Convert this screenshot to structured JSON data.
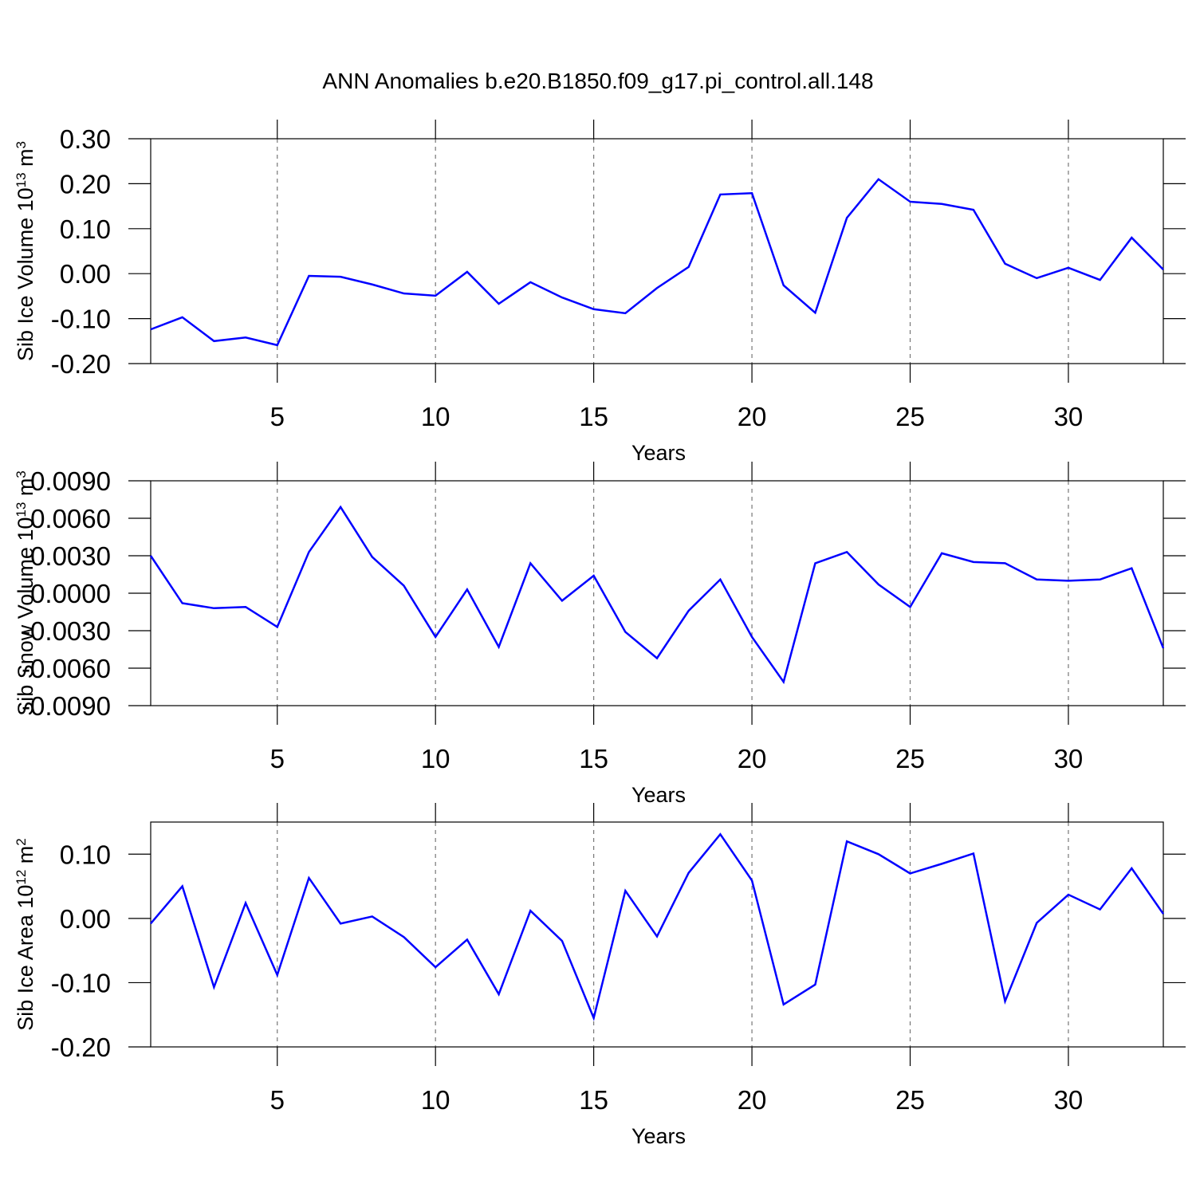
{
  "chart_data": [
    {
      "type": "line",
      "title": "ANN Anomalies b.e20.B1850.f09_g17.pi_control.all.148",
      "ylabel": [
        {
          "text": "Sib Ice Volume 10"
        },
        {
          "text": "13",
          "sup": true
        },
        {
          "text": " m"
        },
        {
          "text": "3",
          "sup": true
        }
      ],
      "xlabel": "Years",
      "x": [
        1,
        2,
        3,
        4,
        5,
        6,
        7,
        8,
        9,
        10,
        11,
        12,
        13,
        14,
        15,
        16,
        17,
        18,
        19,
        20,
        21,
        22,
        23,
        24,
        25,
        26,
        27,
        28,
        29,
        30,
        31,
        32,
        33
      ],
      "values": [
        -0.124,
        -0.097,
        -0.15,
        -0.142,
        -0.159,
        -0.005,
        -0.007,
        -0.024,
        -0.044,
        -0.049,
        0.004,
        -0.067,
        -0.019,
        -0.053,
        -0.079,
        -0.088,
        -0.032,
        0.015,
        0.176,
        0.179,
        -0.026,
        -0.087,
        0.124,
        0.21,
        0.16,
        0.155,
        0.142,
        0.022,
        -0.01,
        0.013,
        -0.014,
        0.08,
        0.009
      ],
      "color": "#0000ff",
      "xlim": [
        1,
        33
      ],
      "xticks": [
        5,
        10,
        15,
        20,
        25,
        30
      ],
      "ylim": [
        -0.2,
        0.3
      ],
      "yticks": [
        {
          "value": 0.3,
          "label": "0.30"
        },
        {
          "value": 0.2,
          "label": "0.20"
        },
        {
          "value": 0.1,
          "label": "0.10"
        },
        {
          "value": 0,
          "label": "0.00"
        },
        {
          "value": -0.1,
          "label": "-0.10"
        },
        {
          "value": -0.2,
          "label": "-0.20"
        }
      ],
      "xgrid": true
    },
    {
      "type": "line",
      "ylabel": [
        {
          "text": "Sib Snow Volume 10"
        },
        {
          "text": "13",
          "sup": true
        },
        {
          "text": " m"
        },
        {
          "text": "3",
          "sup": true
        }
      ],
      "xlabel": "Years",
      "x": [
        1,
        2,
        3,
        4,
        5,
        6,
        7,
        8,
        9,
        10,
        11,
        12,
        13,
        14,
        15,
        16,
        17,
        18,
        19,
        20,
        21,
        22,
        23,
        24,
        25,
        26,
        27,
        28,
        29,
        30,
        31,
        32,
        33
      ],
      "values": [
        0.003,
        -0.0008,
        -0.0012,
        -0.0011,
        -0.0027,
        0.0033,
        0.0069,
        0.0029,
        0.0006,
        -0.0035,
        0.0003,
        -0.0043,
        0.0024,
        -0.0006,
        0.0014,
        -0.0031,
        -0.0052,
        -0.0014,
        0.0011,
        -0.0035,
        -0.0071,
        0.0024,
        0.0033,
        0.0007,
        -0.0011,
        0.0032,
        0.0025,
        0.0024,
        0.0011,
        0.001,
        0.0011,
        0.002,
        -0.0044
      ],
      "color": "#0000ff",
      "xlim": [
        1,
        33
      ],
      "xticks": [
        5,
        10,
        15,
        20,
        25,
        30
      ],
      "ylim": [
        -0.009,
        0.009
      ],
      "yticks": [
        {
          "value": 0.009,
          "label": "0.0090"
        },
        {
          "value": 0.006,
          "label": "0.0060"
        },
        {
          "value": 0.003,
          "label": "0.0030"
        },
        {
          "value": 0,
          "label": "0.0000"
        },
        {
          "value": -0.003,
          "label": "-0.0030"
        },
        {
          "value": -0.006,
          "label": "-0.0060"
        },
        {
          "value": -0.009,
          "label": "-0.0090"
        }
      ],
      "xgrid": true
    },
    {
      "type": "line",
      "ylabel": [
        {
          "text": "Sib Ice Area 10"
        },
        {
          "text": "12",
          "sup": true
        },
        {
          "text": " m"
        },
        {
          "text": "2",
          "sup": true
        }
      ],
      "xlabel": "Years",
      "x": [
        1,
        2,
        3,
        4,
        5,
        6,
        7,
        8,
        9,
        10,
        11,
        12,
        13,
        14,
        15,
        16,
        17,
        18,
        19,
        20,
        21,
        22,
        23,
        24,
        25,
        26,
        27,
        28,
        29,
        30,
        31,
        32,
        33
      ],
      "values": [
        -0.008,
        0.05,
        -0.107,
        0.024,
        -0.088,
        0.063,
        -0.008,
        0.003,
        -0.029,
        -0.076,
        -0.033,
        -0.118,
        0.012,
        -0.035,
        -0.155,
        0.043,
        -0.028,
        0.071,
        0.131,
        0.059,
        -0.134,
        -0.103,
        0.12,
        0.1,
        0.07,
        0.085,
        0.101,
        -0.129,
        -0.007,
        0.037,
        0.014,
        0.078,
        0.007
      ],
      "color": "#0000ff",
      "xlim": [
        1,
        33
      ],
      "xticks": [
        5,
        10,
        15,
        20,
        25,
        30
      ],
      "ylim": [
        -0.2,
        0.15
      ],
      "yticks": [
        {
          "value": 0.1,
          "label": "0.10"
        },
        {
          "value": 0,
          "label": "0.00"
        },
        {
          "value": -0.1,
          "label": "-0.10"
        },
        {
          "value": -0.2,
          "label": "-0.20"
        }
      ],
      "xgrid": true
    }
  ]
}
